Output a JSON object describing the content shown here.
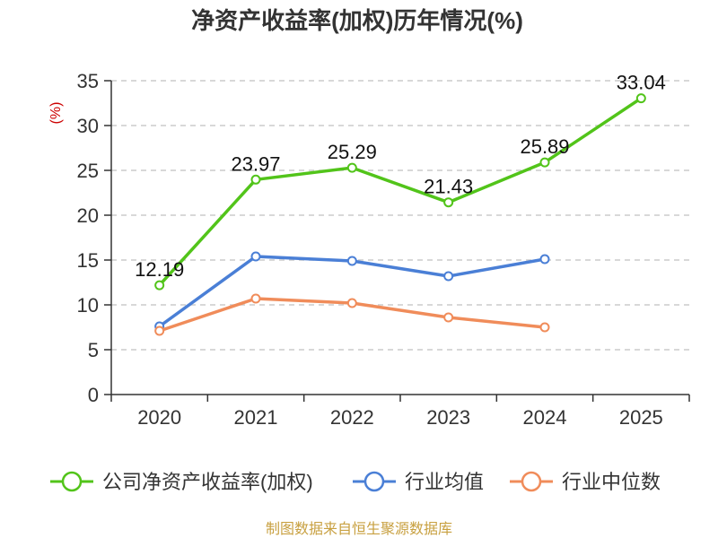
{
  "chart_data": {
    "type": "line",
    "title": "净资产收益率(加权)历年情况(%)",
    "ylabel": "(%)",
    "xlabel": "",
    "categories": [
      "2020",
      "2021",
      "2022",
      "2023",
      "2024",
      "2025"
    ],
    "ylim": [
      0,
      35
    ],
    "yticks": [
      0,
      5,
      10,
      15,
      20,
      25,
      30,
      35
    ],
    "grid": true,
    "legend_position": "bottom",
    "series": [
      {
        "name": "公司净资产收益率(加权)",
        "color": "#52c41a",
        "values": [
          12.19,
          23.97,
          25.29,
          21.43,
          25.89,
          33.04
        ],
        "labels": [
          "12.19",
          "23.97",
          "25.29",
          "21.43",
          "25.89",
          "33.04"
        ]
      },
      {
        "name": "行业均值",
        "color": "#4a7fd6",
        "values": [
          7.6,
          15.4,
          14.9,
          13.2,
          15.1,
          null
        ]
      },
      {
        "name": "行业中位数",
        "color": "#f08c5a",
        "values": [
          7.1,
          10.7,
          10.2,
          8.6,
          7.5,
          null
        ]
      }
    ]
  },
  "footer": {
    "source": "制图数据来自恒生聚源数据库"
  },
  "colors": {
    "axis": "#333333",
    "grid": "#cccccc",
    "ylabel": "#cc0000",
    "footer": "#c8a040"
  }
}
